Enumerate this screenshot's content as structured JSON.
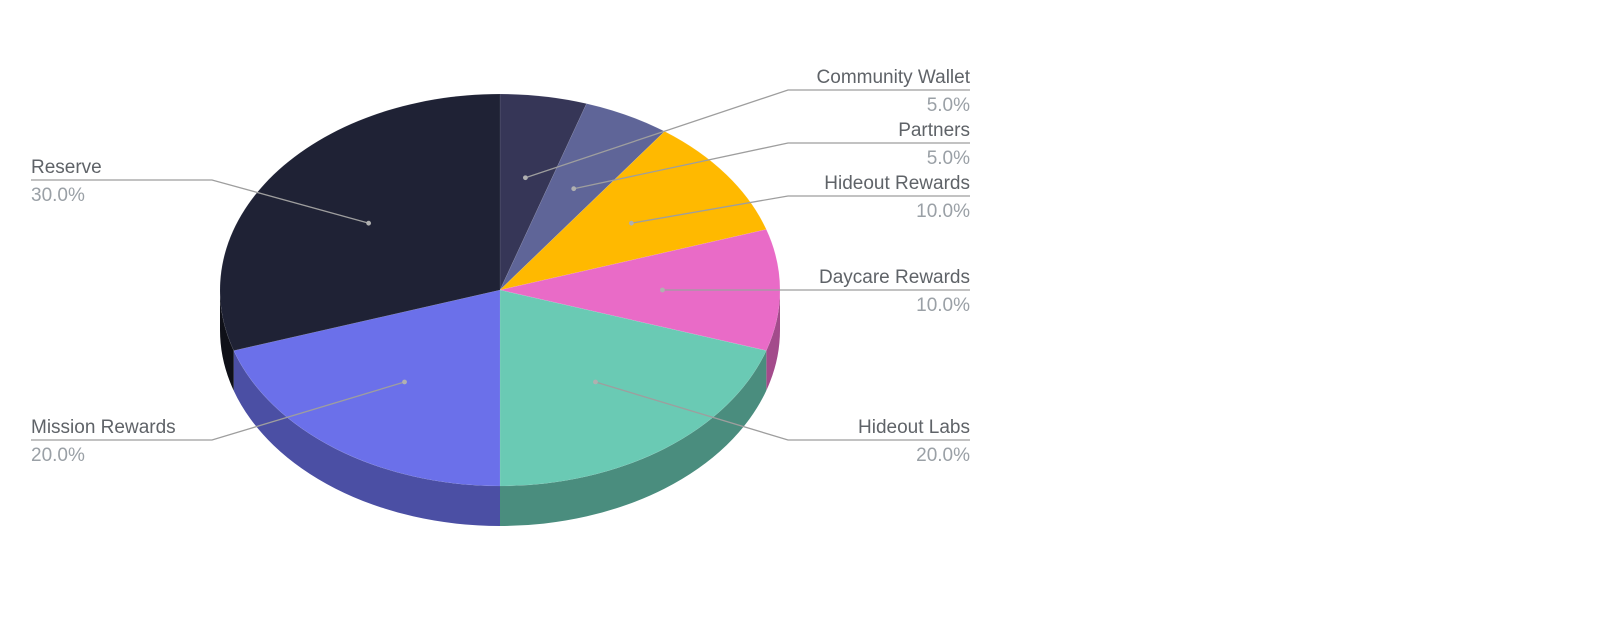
{
  "chart_data": {
    "type": "pie",
    "three_d": true,
    "slices": [
      {
        "label": "Community Wallet",
        "value": 5.0,
        "display": "5.0%",
        "color": "#363657",
        "side_color": "#26263d"
      },
      {
        "label": "Partners",
        "value": 5.0,
        "display": "5.0%",
        "color": "#5f6598",
        "side_color": "#44496e"
      },
      {
        "label": "Hideout Rewards",
        "value": 10.0,
        "display": "10.0%",
        "color": "#ffb900",
        "side_color": "#b38200"
      },
      {
        "label": "Daycare Rewards",
        "value": 10.0,
        "display": "10.0%",
        "color": "#e96bc7",
        "side_color": "#a34b8b"
      },
      {
        "label": "Hideout Labs",
        "value": 20.0,
        "display": "20.0%",
        "color": "#6acab4",
        "side_color": "#4a8d7e"
      },
      {
        "label": "Mission Rewards",
        "value": 20.0,
        "display": "20.0%",
        "color": "#6b70ea",
        "side_color": "#4b4fa4"
      },
      {
        "label": "Reserve",
        "value": 30.0,
        "display": "30.0%",
        "color": "#1f2235",
        "side_color": "#0f1018"
      }
    ],
    "legend": "labeled-callouts"
  }
}
